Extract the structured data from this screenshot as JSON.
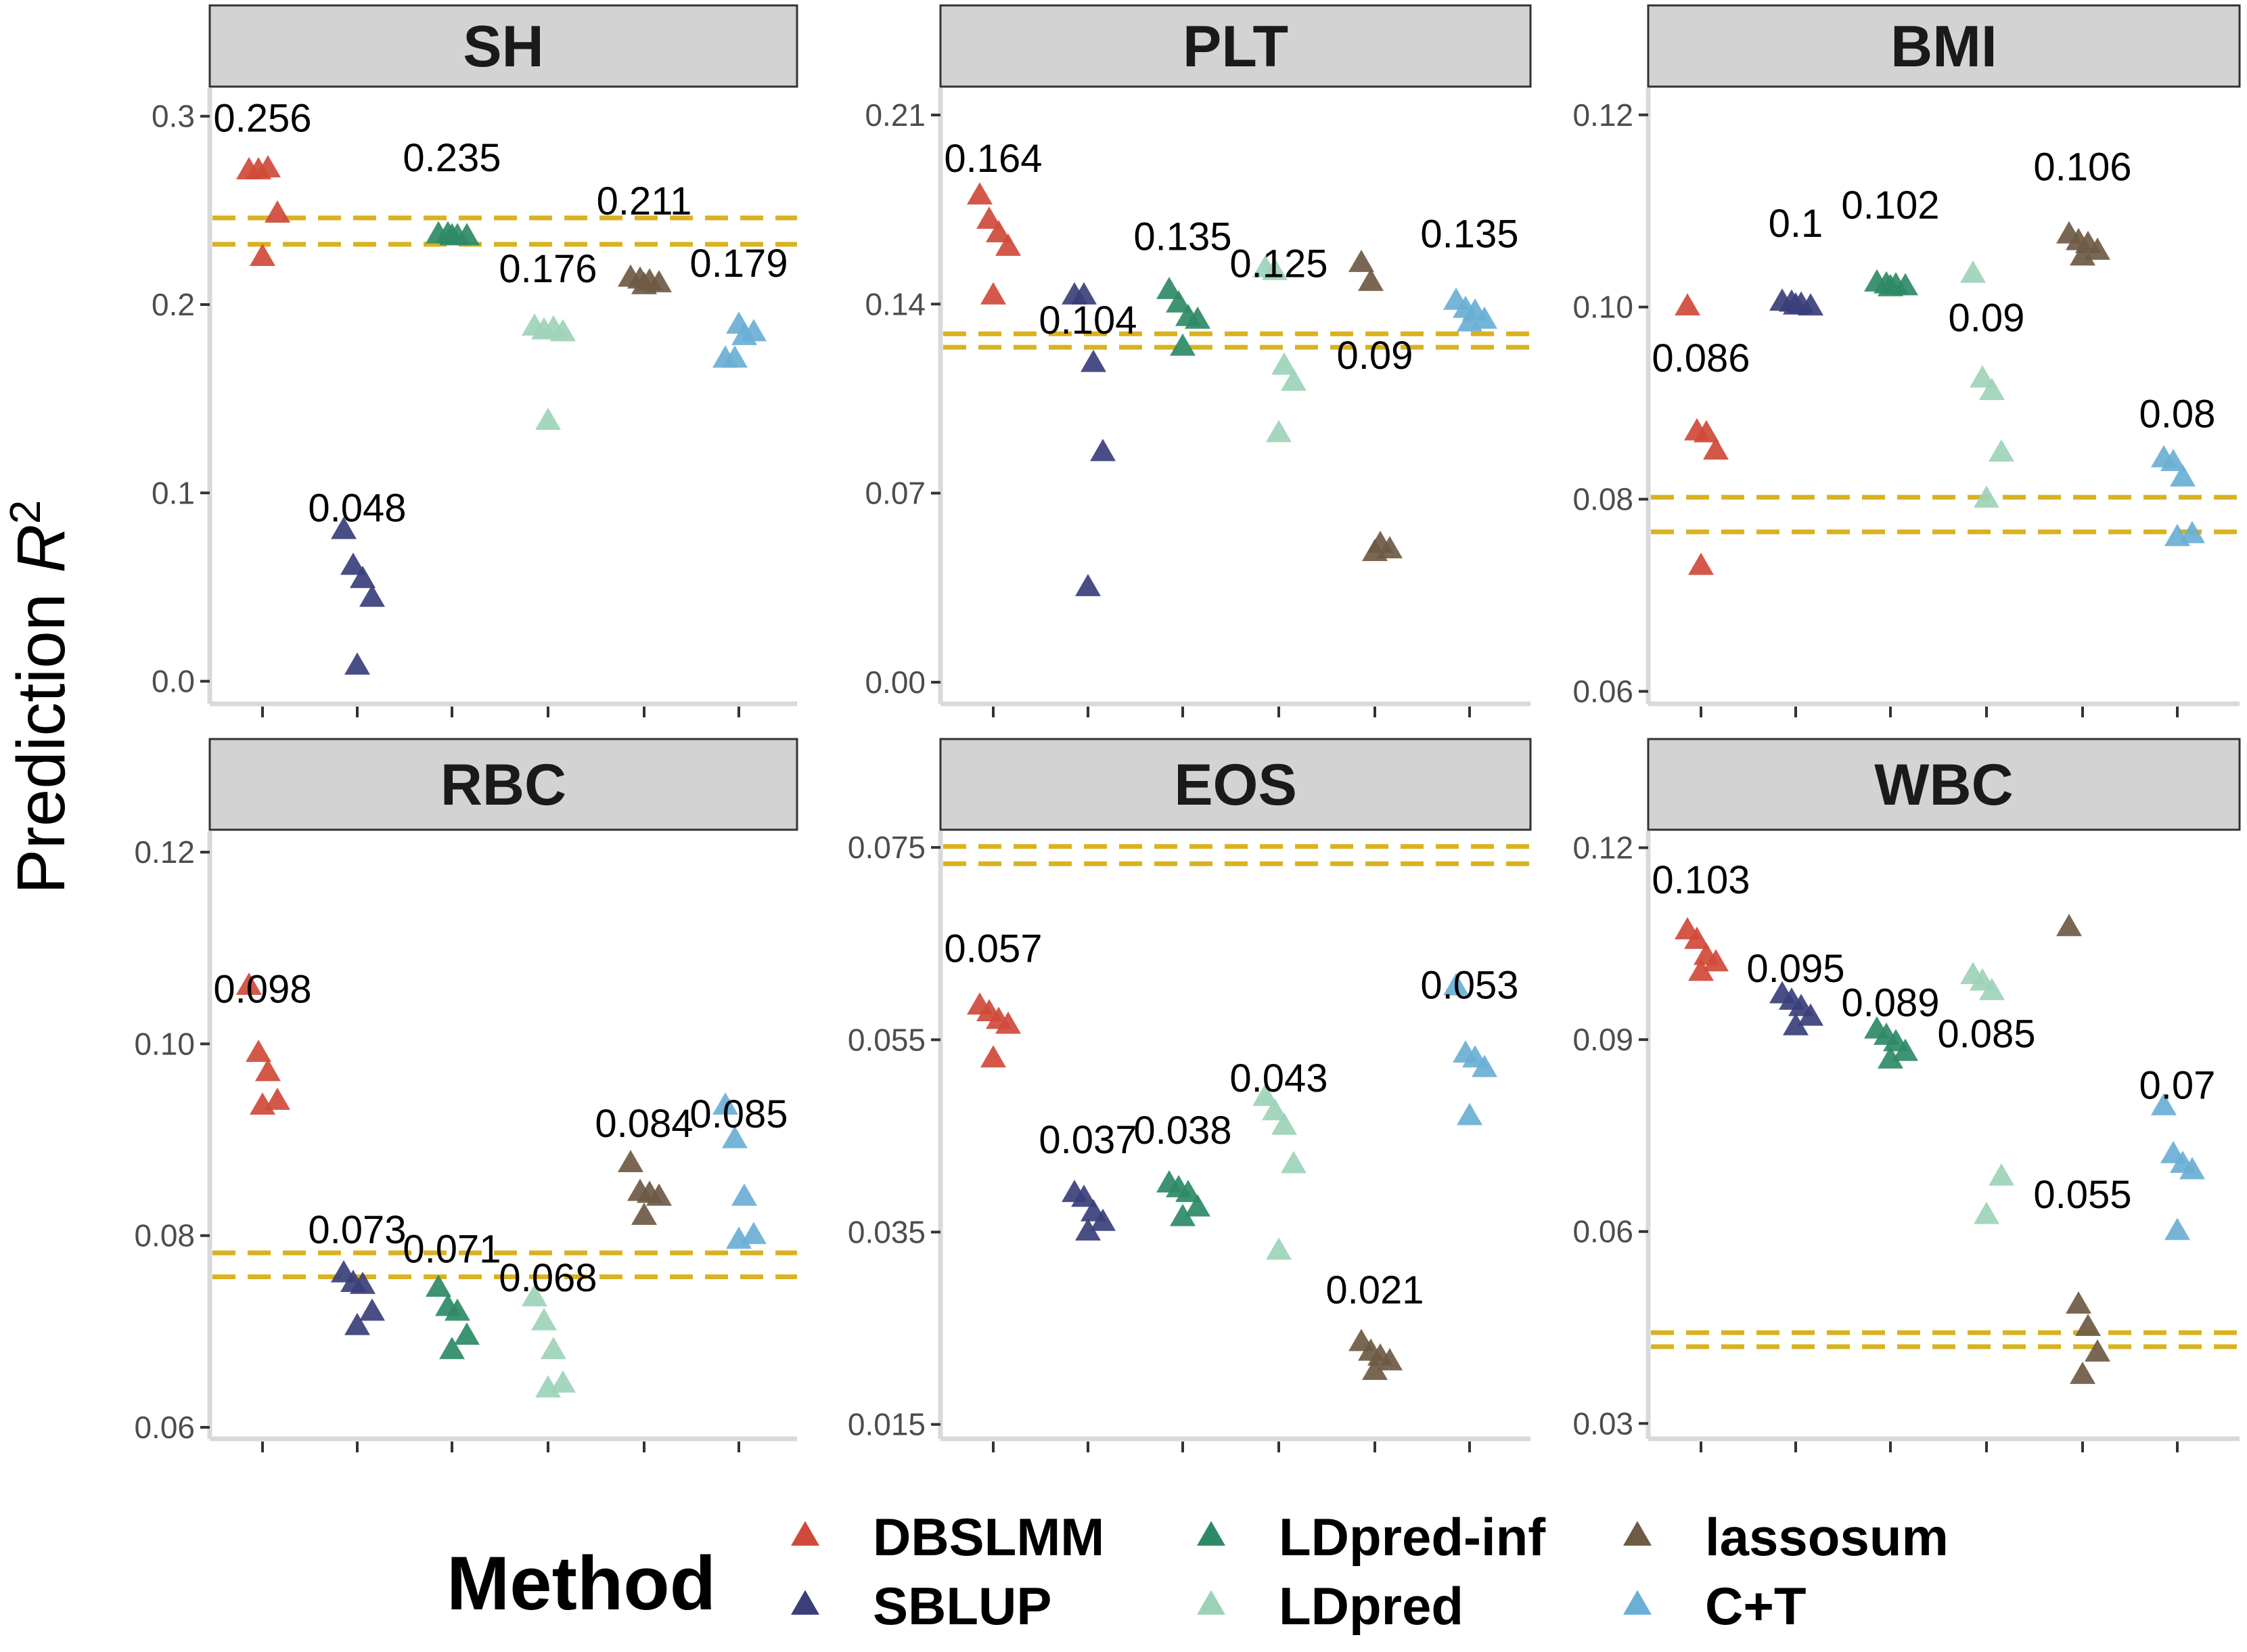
{
  "chart_data": {
    "type": "scatter",
    "ylabel": "Prediction",
    "ylabel_symbol": "R",
    "ylabel_superscript": "2",
    "legend": {
      "title": "Method",
      "position": "bottom",
      "entries": [
        "DBSLMM",
        "SBLUP",
        "LDpred-inf",
        "LDpred",
        "lassosum",
        "C+T"
      ]
    },
    "colors": {
      "DBSLMM": "#CF4A3A",
      "SBLUP": "#3A3F7A",
      "LDpred-inf": "#2E8A66",
      "LDpred": "#9DD2B8",
      "lassosum": "#6E5A45",
      "C+T": "#6AAFD5",
      "reference_line": "#D9B21E",
      "strip_fill": "#D3D3D3",
      "axis": "#D9D9D9"
    },
    "panels": [
      {
        "title": "SH",
        "ylim": [
          -0.012,
          0.315
        ],
        "yticks": [
          0.0,
          0.1,
          0.2,
          0.3
        ],
        "ytick_labels": [
          "0.0",
          "0.1",
          "0.2",
          "0.3"
        ],
        "hlines": [
          0.246,
          0.232
        ],
        "labels": [
          "0.256",
          "0.048",
          "0.235",
          "0.176",
          "0.211",
          "0.179"
        ],
        "label_values": [
          0.299,
          0.092,
          0.278,
          0.219,
          0.255,
          0.222
        ],
        "series": [
          {
            "name": "DBSLMM",
            "values": [
              0.271,
              0.271,
              0.272,
              0.248,
              0.225
            ]
          },
          {
            "name": "SBLUP",
            "values": [
              0.08,
              0.061,
              0.054,
              0.044,
              0.008
            ]
          },
          {
            "name": "LDpred-inf",
            "values": [
              0.237,
              0.237,
              0.236,
              0.236,
              0.236
            ]
          },
          {
            "name": "LDpred",
            "values": [
              0.188,
              0.186,
              0.187,
              0.185,
              0.138
            ]
          },
          {
            "name": "lassosum",
            "values": [
              0.214,
              0.213,
              0.212,
              0.211,
              0.21
            ]
          },
          {
            "name": "C+T",
            "values": [
              0.171,
              0.171,
              0.183,
              0.185,
              0.189
            ]
          }
        ]
      },
      {
        "title": "PLT",
        "ylim": [
          -0.008,
          0.22
        ],
        "yticks": [
          0.0,
          0.07,
          0.14,
          0.21
        ],
        "ytick_labels": [
          "0.00",
          "0.07",
          "0.14",
          "0.21"
        ],
        "hlines": [
          0.129,
          0.124
        ],
        "labels": [
          "0.164",
          "0.104",
          "0.135",
          "0.125",
          "0.09",
          "0.135"
        ],
        "label_values": [
          0.194,
          0.134,
          0.165,
          0.155,
          0.121,
          0.166
        ],
        "series": [
          {
            "name": "DBSLMM",
            "values": [
              0.18,
              0.171,
              0.166,
              0.161,
              0.143
            ]
          },
          {
            "name": "SBLUP",
            "values": [
              0.143,
              0.143,
              0.118,
              0.085,
              0.035
            ]
          },
          {
            "name": "LDpred-inf",
            "values": [
              0.145,
              0.14,
              0.135,
              0.134,
              0.124
            ]
          },
          {
            "name": "LDpred",
            "values": [
              0.153,
              0.152,
              0.117,
              0.111,
              0.092
            ]
          },
          {
            "name": "lassosum",
            "values": [
              0.155,
              0.148,
              0.051,
              0.049,
              0.048
            ]
          },
          {
            "name": "C+T",
            "values": [
              0.141,
              0.138,
              0.137,
              0.134,
              0.133
            ]
          }
        ]
      },
      {
        "title": "BMI",
        "ylim": [
          0.0587,
          0.1228
        ],
        "yticks": [
          0.06,
          0.08,
          0.1,
          0.12
        ],
        "ytick_labels": [
          "0.06",
          "0.08",
          "0.10",
          "0.12"
        ],
        "hlines": [
          0.0802,
          0.0766
        ],
        "labels": [
          "0.086",
          "0.1",
          "0.102",
          "0.09",
          "0.106",
          "0.08"
        ],
        "label_values": [
          0.0947,
          0.1087,
          0.1106,
          0.0989,
          0.1146,
          0.0889
        ],
        "series": [
          {
            "name": "DBSLMM",
            "values": [
              0.1,
              0.087,
              0.0868,
              0.085,
              0.073
            ]
          },
          {
            "name": "SBLUP",
            "values": [
              0.1005,
              0.1004,
              0.1002,
              0.1,
              0.1001
            ]
          },
          {
            "name": "LDpred-inf",
            "values": [
              0.1025,
              0.1023,
              0.1022,
              0.1021,
              0.102
            ]
          },
          {
            "name": "LDpred",
            "values": [
              0.1034,
              0.0925,
              0.0912,
              0.0848,
              0.08
            ]
          },
          {
            "name": "lassosum",
            "values": [
              0.1075,
              0.1068,
              0.1065,
              0.1058,
              0.1052
            ]
          },
          {
            "name": "C+T",
            "values": [
              0.0842,
              0.0838,
              0.0822,
              0.0763,
              0.076
            ]
          }
        ]
      },
      {
        "title": "RBC",
        "ylim": [
          0.0588,
          0.1222
        ],
        "yticks": [
          0.06,
          0.08,
          0.1,
          0.12
        ],
        "ytick_labels": [
          "0.06",
          "0.08",
          "0.10",
          "0.12"
        ],
        "hlines": [
          0.0782,
          0.0757
        ],
        "labels": [
          "0.098",
          "0.073",
          "0.071",
          "0.068",
          "0.084",
          "0.085"
        ],
        "label_values": [
          0.1057,
          0.0806,
          0.0786,
          0.0756,
          0.0917,
          0.0927
        ],
        "series": [
          {
            "name": "DBSLMM",
            "values": [
              0.106,
              0.099,
              0.097,
              0.094,
              0.0935
            ]
          },
          {
            "name": "SBLUP",
            "values": [
              0.076,
              0.075,
              0.0748,
              0.072,
              0.0705
            ]
          },
          {
            "name": "LDpred-inf",
            "values": [
              0.0745,
              0.0725,
              0.072,
              0.0695,
              0.068
            ]
          },
          {
            "name": "LDpred",
            "values": [
              0.0735,
              0.071,
              0.068,
              0.0645,
              0.064
            ]
          },
          {
            "name": "lassosum",
            "values": [
              0.0875,
              0.0845,
              0.0843,
              0.084,
              0.082
            ]
          },
          {
            "name": "C+T",
            "values": [
              0.0935,
              0.09,
              0.084,
              0.08,
              0.0795
            ]
          }
        ]
      },
      {
        "title": "EOS",
        "ylim": [
          0.0135,
          0.0767
        ],
        "yticks": [
          0.015,
          0.035,
          0.055,
          0.075
        ],
        "ytick_labels": [
          "0.015",
          "0.035",
          "0.055",
          "0.075"
        ],
        "hlines": [
          0.0751,
          0.0733
        ],
        "labels": [
          "0.057",
          "0.037",
          "0.038",
          "0.043",
          "0.021",
          "0.053"
        ],
        "label_values": [
          0.0645,
          0.0446,
          0.0456,
          0.051,
          0.029,
          0.0607
        ],
        "series": [
          {
            "name": "DBSLMM",
            "values": [
              0.0585,
              0.0578,
              0.057,
              0.0565,
              0.053
            ]
          },
          {
            "name": "SBLUP",
            "values": [
              0.039,
              0.0385,
              0.037,
              0.036,
              0.035
            ]
          },
          {
            "name": "LDpred-inf",
            "values": [
              0.04,
              0.0395,
              0.039,
              0.0375,
              0.0365
            ]
          },
          {
            "name": "LDpred",
            "values": [
              0.049,
              0.0475,
              0.046,
              0.042,
              0.033
            ]
          },
          {
            "name": "lassosum",
            "values": [
              0.0235,
              0.0225,
              0.022,
              0.0215,
              0.0205
            ]
          },
          {
            "name": "C+T",
            "values": [
              0.0605,
              0.0535,
              0.053,
              0.052,
              0.047
            ]
          }
        ]
      },
      {
        "title": "WBC",
        "ylim": [
          0.0276,
          0.1226
        ],
        "yticks": [
          0.03,
          0.06,
          0.09,
          0.12
        ],
        "ytick_labels": [
          "0.03",
          "0.06",
          "0.09",
          "0.12"
        ],
        "hlines": [
          0.0442,
          0.042
        ],
        "labels": [
          "0.103",
          "0.095",
          "0.089",
          "0.085",
          "0.055",
          "0.07"
        ],
        "label_values": [
          0.115,
          0.1011,
          0.0958,
          0.0909,
          0.0658,
          0.0829
        ],
        "series": [
          {
            "name": "DBSLMM",
            "values": [
              0.107,
              0.1055,
              0.103,
              0.102,
              0.1005
            ]
          },
          {
            "name": "SBLUP",
            "values": [
              0.097,
              0.096,
              0.095,
              0.0935,
              0.092
            ]
          },
          {
            "name": "LDpred-inf",
            "values": [
              0.0915,
              0.0905,
              0.0895,
              0.088,
              0.0868
            ]
          },
          {
            "name": "LDpred",
            "values": [
              0.1,
              0.099,
              0.0975,
              0.0685,
              0.0625
            ]
          },
          {
            "name": "lassosum",
            "values": [
              0.1075,
              0.0485,
              0.045,
              0.041,
              0.0375
            ]
          },
          {
            "name": "C+T",
            "values": [
              0.0795,
              0.072,
              0.0705,
              0.0695,
              0.06
            ]
          }
        ]
      }
    ]
  }
}
